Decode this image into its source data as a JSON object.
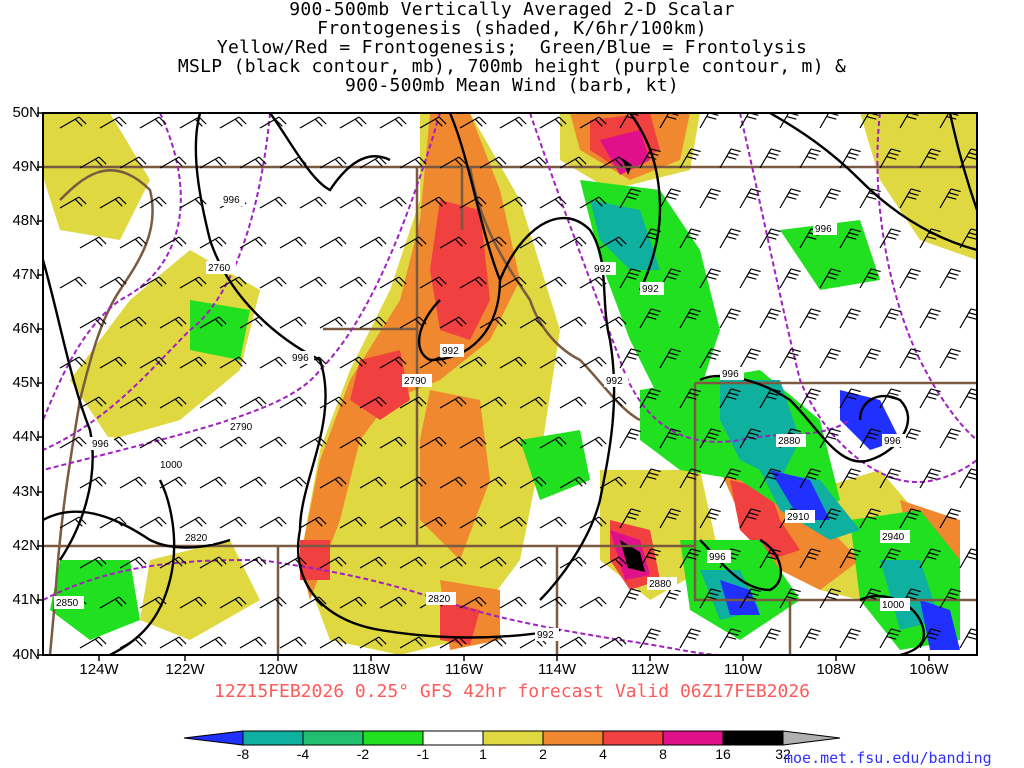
{
  "title_lines": [
    "900-500mb Vertically Averaged 2-D Scalar",
    "Frontogenesis (shaded, K/6hr/100km)",
    "Yellow/Red = Frontogenesis;  Green/Blue = Frontolysis",
    "MSLP (black contour, mb), 700mb height (purple contour, m) &",
    "900-500mb Mean Wind (barb, kt)"
  ],
  "lat_labels": [
    "50N",
    "49N",
    "48N",
    "47N",
    "46N",
    "45N",
    "44N",
    "43N",
    "42N",
    "41N",
    "40N"
  ],
  "lon_labels": [
    "124W",
    "122W",
    "120W",
    "118W",
    "116W",
    "114W",
    "112W",
    "110W",
    "108W",
    "106W"
  ],
  "valid_text": "12Z15FEB2026 0.25° GFS 42hr forecast Valid 06Z17FEB2026",
  "colorbar": {
    "ticks": [
      "-8",
      "-4",
      "-2",
      "-1",
      "1",
      "2",
      "4",
      "8",
      "16",
      "32"
    ],
    "colors": [
      "#2030ff",
      "#10b0a0",
      "#20c070",
      "#20e020",
      "#ffffff",
      "#e0d840",
      "#f08830",
      "#f04040",
      "#e0108a",
      "#000000"
    ]
  },
  "contour_labels": {
    "mslp": [
      "996",
      "996",
      "992",
      "992",
      "992",
      "992",
      "996",
      "996",
      "996",
      "1000",
      "996",
      "992",
      "996",
      "1000"
    ],
    "height": [
      "2760",
      "2790",
      "2790",
      "2820",
      "2850",
      "2820",
      "2880",
      "2880",
      "2910",
      "2940"
    ]
  },
  "map": {
    "lat_range": [
      40,
      50
    ],
    "lon_range": [
      -125,
      -105
    ],
    "shading_colors": {
      "frontogenesis_weak": "#e0d840",
      "frontogenesis_moderate": "#f08830",
      "frontogenesis_strong": "#f04040",
      "frontogenesis_very_strong": "#e0108a",
      "frontolysis_weak": "#20e020",
      "frontolysis_moderate": "#20c070",
      "frontolysis_strong": "#10b0a0",
      "frontolysis_very_strong": "#2030ff"
    },
    "mslp_color": "#000000",
    "height_color": "#a020c0",
    "border_color": "#7a5a40"
  },
  "credit": "moe.met.fsu.edu/banding"
}
